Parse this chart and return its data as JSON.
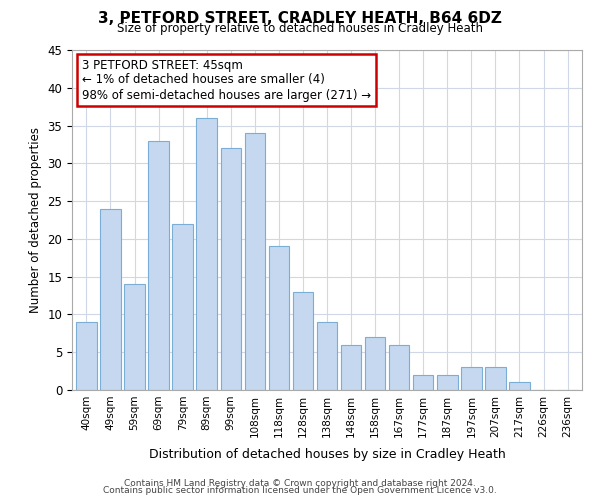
{
  "title": "3, PETFORD STREET, CRADLEY HEATH, B64 6DZ",
  "subtitle": "Size of property relative to detached houses in Cradley Heath",
  "xlabel": "Distribution of detached houses by size in Cradley Heath",
  "ylabel": "Number of detached properties",
  "bar_labels": [
    "40sqm",
    "49sqm",
    "59sqm",
    "69sqm",
    "79sqm",
    "89sqm",
    "99sqm",
    "108sqm",
    "118sqm",
    "128sqm",
    "138sqm",
    "148sqm",
    "158sqm",
    "167sqm",
    "177sqm",
    "187sqm",
    "197sqm",
    "207sqm",
    "217sqm",
    "226sqm",
    "236sqm"
  ],
  "bar_values": [
    9,
    24,
    14,
    33,
    22,
    36,
    32,
    34,
    19,
    13,
    9,
    6,
    7,
    6,
    2,
    2,
    3,
    3,
    1,
    0,
    0
  ],
  "bar_color": "#c5d8f0",
  "bar_edge_color": "#7baed4",
  "annotation_title": "3 PETFORD STREET: 45sqm",
  "annotation_line1": "← 1% of detached houses are smaller (4)",
  "annotation_line2": "98% of semi-detached houses are larger (271) →",
  "annotation_box_color": "#ffffff",
  "annotation_border_color": "#cc0000",
  "ylim": [
    0,
    45
  ],
  "yticks": [
    0,
    5,
    10,
    15,
    20,
    25,
    30,
    35,
    40,
    45
  ],
  "footer1": "Contains HM Land Registry data © Crown copyright and database right 2024.",
  "footer2": "Contains public sector information licensed under the Open Government Licence v3.0.",
  "bg_color": "#ffffff",
  "grid_color": "#d0d8e8"
}
